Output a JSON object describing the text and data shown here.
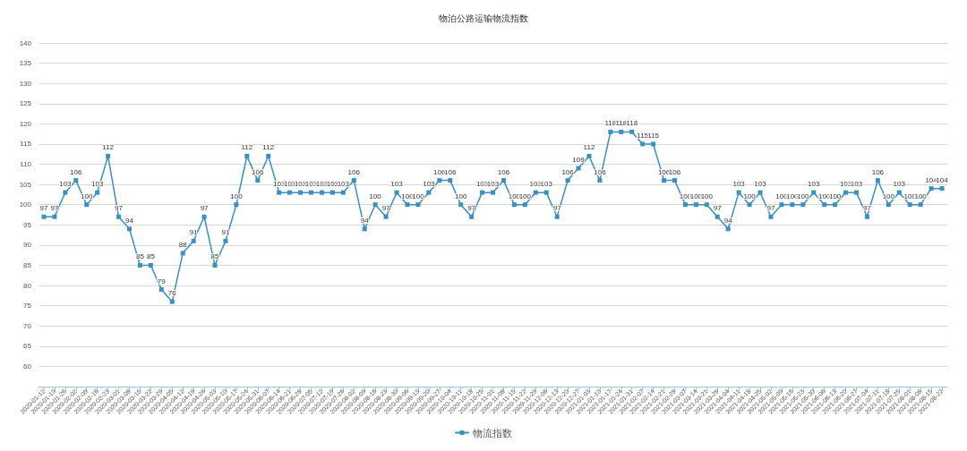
{
  "chart_data": {
    "type": "line",
    "title": "物泊公路运输物流指数",
    "categories": [
      "2020-01-12",
      "2020-01-19",
      "2020-01-26",
      "2020-02-02",
      "2020-02-09",
      "2020-02-16",
      "2020-02-23",
      "2020-03-01",
      "2020-03-08",
      "2020-03-15",
      "2020-03-22",
      "2020-03-29",
      "2020-04-05",
      "2020-04-12",
      "2020-04-19",
      "2020-04-26",
      "2020-05-03",
      "2020-05-10",
      "2020-05-17",
      "2020-05-24",
      "2020-05-31",
      "2020-06-07",
      "2020-06-14",
      "2020-06-21",
      "2020-06-28",
      "2020-07-05",
      "2020-07-12",
      "2020-07-19",
      "2020-07-26",
      "2020-08-02",
      "2020-08-09",
      "2020-08-16",
      "2020-08-23",
      "2020-08-30",
      "2020-09-06",
      "2020-09-13",
      "2020-09-20",
      "2020-09-27",
      "2020-10-04",
      "2020-10-11",
      "2020-10-18",
      "2020-10-25",
      "2020-11-01",
      "2020-11-08",
      "2020-11-15",
      "2020-11-22",
      "2020-11-29",
      "2020-12-06",
      "2020-12-13",
      "2020-12-20",
      "2020-12-27",
      "2021-01-03",
      "2021-01-10",
      "2021-01-17",
      "2021-01-24",
      "2021-01-31",
      "2021-02-07",
      "2021-02-14",
      "2021-02-21",
      "2021-02-28",
      "2021-03-07",
      "2021-03-14",
      "2021-03-21",
      "2021-03-28",
      "2021-04-04",
      "2021-04-11",
      "2021-04-18",
      "2021-04-25",
      "2021-05-02",
      "2021-05-09",
      "2021-05-16",
      "2021-05-23",
      "2021-05-30",
      "2021-06-06",
      "2021-06-13",
      "2021-06-20",
      "2021-06-27",
      "2021-07-04",
      "2021-07-11",
      "2021-07-18",
      "2021-07-25",
      "2021-08-01",
      "2021-08-08",
      "2021-08-15",
      "2021-08-22"
    ],
    "series": [
      {
        "name": "物流指数",
        "color": "#3a8fc4",
        "values": [
          97,
          97,
          103,
          106,
          100,
          103,
          112,
          97,
          94,
          85,
          85,
          79,
          76,
          88,
          91,
          97,
          85,
          91,
          100,
          112,
          106,
          112,
          103,
          103,
          103,
          103,
          103,
          103,
          103,
          106,
          94,
          100,
          97,
          103,
          100,
          100,
          103,
          106,
          106,
          100,
          97,
          103,
          103,
          106,
          100,
          100,
          103,
          103,
          97,
          106,
          109,
          112,
          106,
          118,
          118,
          118,
          115,
          115,
          106,
          106,
          100,
          100,
          100,
          97,
          94,
          103,
          100,
          103,
          97,
          100,
          100,
          100,
          103,
          100,
          100,
          103,
          103,
          97,
          106,
          100,
          103,
          100,
          100,
          104,
          104
        ]
      }
    ],
    "ylim": [
      55,
      140
    ],
    "yticks": [
      60,
      65,
      70,
      75,
      80,
      85,
      90,
      95,
      100,
      105,
      110,
      115,
      120,
      125,
      130,
      135,
      140
    ],
    "grid": "y",
    "legend": "bottom",
    "marker": "square",
    "line_style": "solid",
    "data_labels": true
  }
}
